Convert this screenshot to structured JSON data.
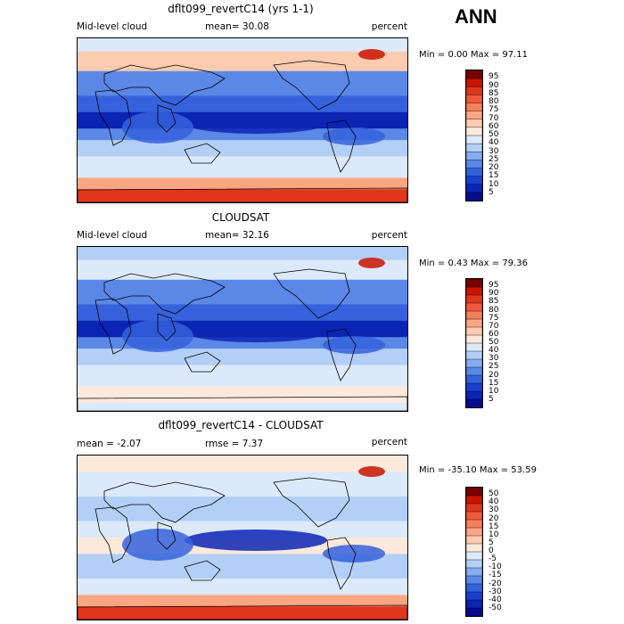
{
  "season": "ANN",
  "panels": [
    {
      "title": "dflt099_revertC14 (yrs 1-1)",
      "left_label": "Mid-level cloud",
      "center_label": "mean=  30.08",
      "right_label": "percent",
      "minmax": "Min =   0.00 Max =  97.11",
      "colorbar_labels": [
        "95",
        "90",
        "85",
        "80",
        "75",
        "70",
        "60",
        "50",
        "40",
        "30",
        "25",
        "20",
        "15",
        "10",
        "5"
      ],
      "colors": [
        "#7a0000",
        "#c81400",
        "#e0361c",
        "#f05a3a",
        "#f7805c",
        "#fba683",
        "#fdcbb0",
        "#fde9dc",
        "#dbe9fa",
        "#b3cff5",
        "#86adf0",
        "#5b88e6",
        "#3562dc",
        "#1740cf",
        "#0a24b4",
        "#060c8e"
      ]
    },
    {
      "title": "CLOUDSAT",
      "left_label": "Mid-level cloud",
      "center_label": "mean=  32.16",
      "right_label": "percent",
      "minmax": "Min =   0.43 Max =  79.36",
      "colorbar_labels": [
        "95",
        "90",
        "85",
        "80",
        "75",
        "70",
        "60",
        "50",
        "40",
        "30",
        "25",
        "20",
        "15",
        "10",
        "5"
      ],
      "colors": [
        "#7a0000",
        "#c81400",
        "#e0361c",
        "#f05a3a",
        "#f7805c",
        "#fba683",
        "#fdcbb0",
        "#fde9dc",
        "#dbe9fa",
        "#b3cff5",
        "#86adf0",
        "#5b88e6",
        "#3562dc",
        "#1740cf",
        "#0a24b4",
        "#060c8e"
      ]
    },
    {
      "title": "dflt099_revertC14 - CLOUDSAT",
      "left_label": "mean =   -2.07",
      "center_label": "rmse =   7.37",
      "right_label": "percent",
      "minmax": "Min = -35.10 Max =  53.59",
      "colorbar_labels": [
        "50",
        "40",
        "30",
        "20",
        "15",
        "10",
        "5",
        "0",
        "-5",
        "-10",
        "-15",
        "-20",
        "-30",
        "-40",
        "-50"
      ],
      "colors": [
        "#7a0000",
        "#c81400",
        "#e0361c",
        "#f05a3a",
        "#f7805c",
        "#fba683",
        "#fdcbb0",
        "#fde9dc",
        "#dbe9fa",
        "#b3cff5",
        "#86adf0",
        "#5b88e6",
        "#3562dc",
        "#1740cf",
        "#0a24b4",
        "#060c8e"
      ]
    }
  ]
}
